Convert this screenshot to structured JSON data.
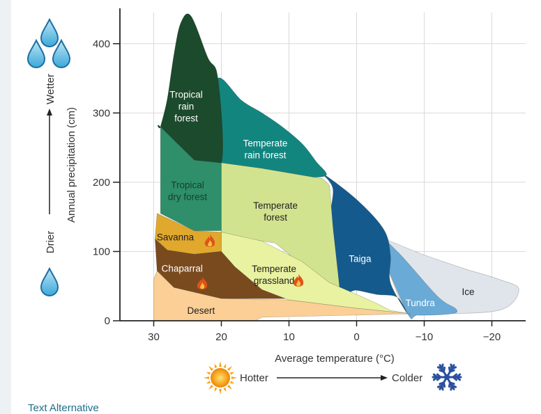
{
  "chart_data": {
    "type": "area",
    "xlabel": "Average temperature (°C)",
    "ylabel": "Annual precipitation (cm)",
    "x_ticks": [
      30,
      20,
      10,
      0,
      -10,
      -20
    ],
    "y_ticks": [
      0,
      100,
      200,
      300,
      400
    ],
    "xlim": [
      35,
      -25
    ],
    "ylim": [
      0,
      445
    ],
    "grid": true,
    "x_direction_labels": {
      "left": "Hotter",
      "right": "Colder"
    },
    "y_direction_labels": {
      "bottom": "Drier",
      "top": "Wetter"
    },
    "regions": [
      {
        "name": "Ice",
        "lines": [
          "Ice"
        ],
        "color": "#dfe5ea",
        "polygon": [
          [
            -3,
            120
          ],
          [
            -10,
            95
          ],
          [
            -16,
            75
          ],
          [
            -21,
            60
          ],
          [
            -24,
            45
          ],
          [
            -21,
            15
          ],
          [
            -10,
            10
          ],
          [
            -7.5,
            10
          ],
          [
            -4,
            90
          ]
        ]
      },
      {
        "name": "Tundra",
        "lines": [
          "Tundra"
        ],
        "color": "#6aaad6",
        "polygon": [
          [
            -3,
            120
          ],
          [
            -7.5,
            12
          ],
          [
            -9,
            8
          ],
          [
            -14,
            10
          ],
          [
            -14.7,
            17
          ],
          [
            -12,
            35
          ],
          [
            -6,
            100
          ]
        ]
      },
      {
        "name": "Taiga",
        "lines": [
          "Taiga"
        ],
        "color": "#145a8c",
        "polygon": [
          [
            5,
            212
          ],
          [
            0,
            175
          ],
          [
            -4,
            132
          ],
          [
            -5,
            95
          ],
          [
            -5,
            55
          ],
          [
            -7.5,
            10
          ],
          [
            -6,
            34
          ],
          [
            -3,
            38
          ],
          [
            0,
            44
          ],
          [
            2.5,
            46
          ],
          [
            4,
            132
          ],
          [
            3.5,
            190
          ]
        ]
      },
      {
        "name": "Temperate rain forest",
        "lines": [
          "Temperate",
          "rain forest"
        ],
        "color": "#13857f",
        "polygon": [
          [
            20.5,
            350
          ],
          [
            17,
            318
          ],
          [
            14,
            300
          ],
          [
            11,
            280
          ],
          [
            8,
            255
          ],
          [
            6,
            230
          ],
          [
            4.5,
            210
          ],
          [
            8,
            208
          ],
          [
            13,
            215
          ],
          [
            18,
            225
          ],
          [
            20,
            228
          ],
          [
            21,
            280
          ]
        ]
      },
      {
        "name": "Tropical rain forest",
        "lines": [
          "Tropical",
          "rain",
          "forest"
        ],
        "color": "#1c4a2c",
        "polygon": [
          [
            29,
            280
          ],
          [
            28,
            320
          ],
          [
            27,
            385
          ],
          [
            26,
            430
          ],
          [
            24.5,
            440
          ],
          [
            22,
            380
          ],
          [
            20.5,
            350
          ],
          [
            20,
            228
          ],
          [
            24,
            232
          ],
          [
            29,
            280
          ]
        ]
      },
      {
        "name": "Tropical dry forest",
        "lines": [
          "Tropical",
          "dry forest"
        ],
        "color": "#2e8f6a",
        "polygon": [
          [
            29,
            280
          ],
          [
            24,
            232
          ],
          [
            20,
            228
          ],
          [
            20,
            130
          ],
          [
            24,
            130
          ],
          [
            29,
            155
          ]
        ]
      },
      {
        "name": "Temperate forest",
        "lines": [
          "Temperate",
          "forest"
        ],
        "color": "#d2e390",
        "polygon": [
          [
            20,
            228
          ],
          [
            24,
            232
          ],
          [
            20,
            228
          ],
          [
            14,
            220
          ],
          [
            8,
            210
          ],
          [
            5,
            205
          ],
          [
            4,
            195
          ],
          [
            3.5,
            135
          ],
          [
            2.5,
            46
          ],
          [
            0.5,
            40
          ],
          [
            1,
            40
          ],
          [
            4,
            50
          ],
          [
            8,
            80
          ],
          [
            12,
            112
          ],
          [
            20,
            125
          ]
        ]
      },
      {
        "name": "Savanna",
        "lines": [
          "Savanna"
        ],
        "color": "#e0a82c",
        "polygon": [
          [
            29.5,
            155
          ],
          [
            24,
            130
          ],
          [
            20,
            128
          ],
          [
            20,
            100
          ],
          [
            24,
            96
          ],
          [
            28,
            102
          ],
          [
            29.8,
            118
          ]
        ]
      },
      {
        "name": "Chaparral",
        "lines": [
          "Chaparral"
        ],
        "color": "#7a4a1f",
        "polygon": [
          [
            29.8,
            118
          ],
          [
            28,
            102
          ],
          [
            24,
            96
          ],
          [
            20,
            100
          ],
          [
            18,
            78
          ],
          [
            14,
            46
          ],
          [
            10,
            32
          ],
          [
            20,
            32
          ],
          [
            27,
            48
          ],
          [
            29.5,
            72
          ]
        ]
      },
      {
        "name": "Temperate grassland",
        "lines": [
          "Temperate",
          "grassland"
        ],
        "color": "#e8f2a0",
        "polygon": [
          [
            20,
            128
          ],
          [
            14,
            115
          ],
          [
            8,
            85
          ],
          [
            4,
            55
          ],
          [
            0,
            38
          ],
          [
            -3,
            25
          ],
          [
            -5,
            15
          ],
          [
            -8,
            10
          ],
          [
            0,
            18
          ],
          [
            10,
            30
          ],
          [
            14,
            45
          ],
          [
            18,
            78
          ],
          [
            20,
            100
          ]
        ]
      },
      {
        "name": "Desert",
        "lines": [
          "Desert"
        ],
        "color": "#fbcf95",
        "polygon": [
          [
            30,
            0
          ],
          [
            15,
            0
          ],
          [
            14,
            5
          ],
          [
            -8,
            10
          ],
          [
            0,
            18
          ],
          [
            10,
            30
          ],
          [
            20,
            32
          ],
          [
            27,
            48
          ],
          [
            29.5,
            72
          ],
          [
            30,
            60
          ]
        ]
      }
    ]
  },
  "text_alternative_link": "Text Alternative"
}
